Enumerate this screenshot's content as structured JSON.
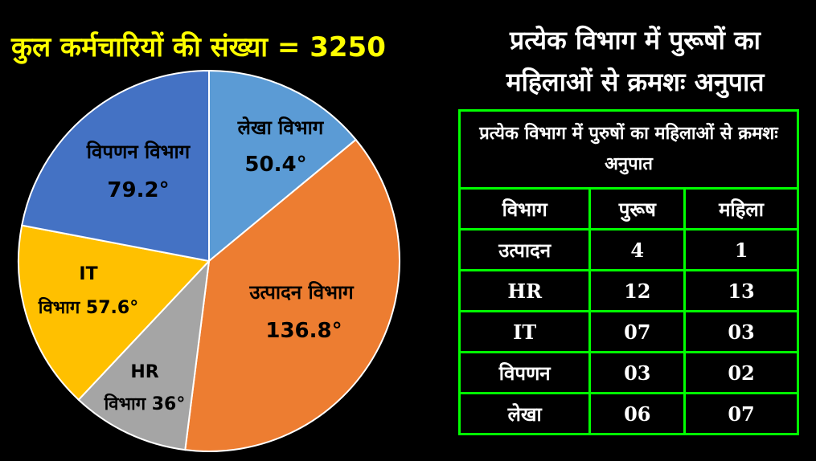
{
  "title": "कुल कर्मचारियों की संख्या = 3250",
  "ratio_heading": "प्रत्येक विभाग में पुरूषों का महिलाओं से क्रमशः अनुपात",
  "table": {
    "caption": "प्रत्येक विभाग में पुरुषों का महिलाओं से क्रमशः अनुपात",
    "headers": [
      "विभाग",
      "पुरूष",
      "महिला"
    ],
    "rows": [
      [
        "उत्पादन",
        "4",
        "1"
      ],
      [
        "HR",
        "12",
        "13"
      ],
      [
        "IT",
        "07",
        "03"
      ],
      [
        "विपणन",
        "03",
        "02"
      ],
      [
        "लेखा",
        "06",
        "07"
      ]
    ]
  },
  "chart_data": {
    "type": "pie",
    "title": "कुल कर्मचारियों की संख्या = 3250",
    "unit": "degrees",
    "slices": [
      {
        "label": "लेखा विभाग",
        "value_label": "50.4°",
        "value": 50.4,
        "color": "#5B9BD5"
      },
      {
        "label": "उत्पादन विभाग",
        "value_label": "136.8°",
        "value": 136.8,
        "color": "#ED7D31"
      },
      {
        "label": "HR विभाग 36°",
        "value_label": "",
        "value": 36,
        "color": "#A5A5A5"
      },
      {
        "label": "IT विभाग 57.6°",
        "value_label": "",
        "value": 57.6,
        "color": "#FFC000"
      },
      {
        "label": "विपणन विभाग",
        "value_label": "79.2°",
        "value": 79.2,
        "color": "#4472C4"
      }
    ]
  }
}
